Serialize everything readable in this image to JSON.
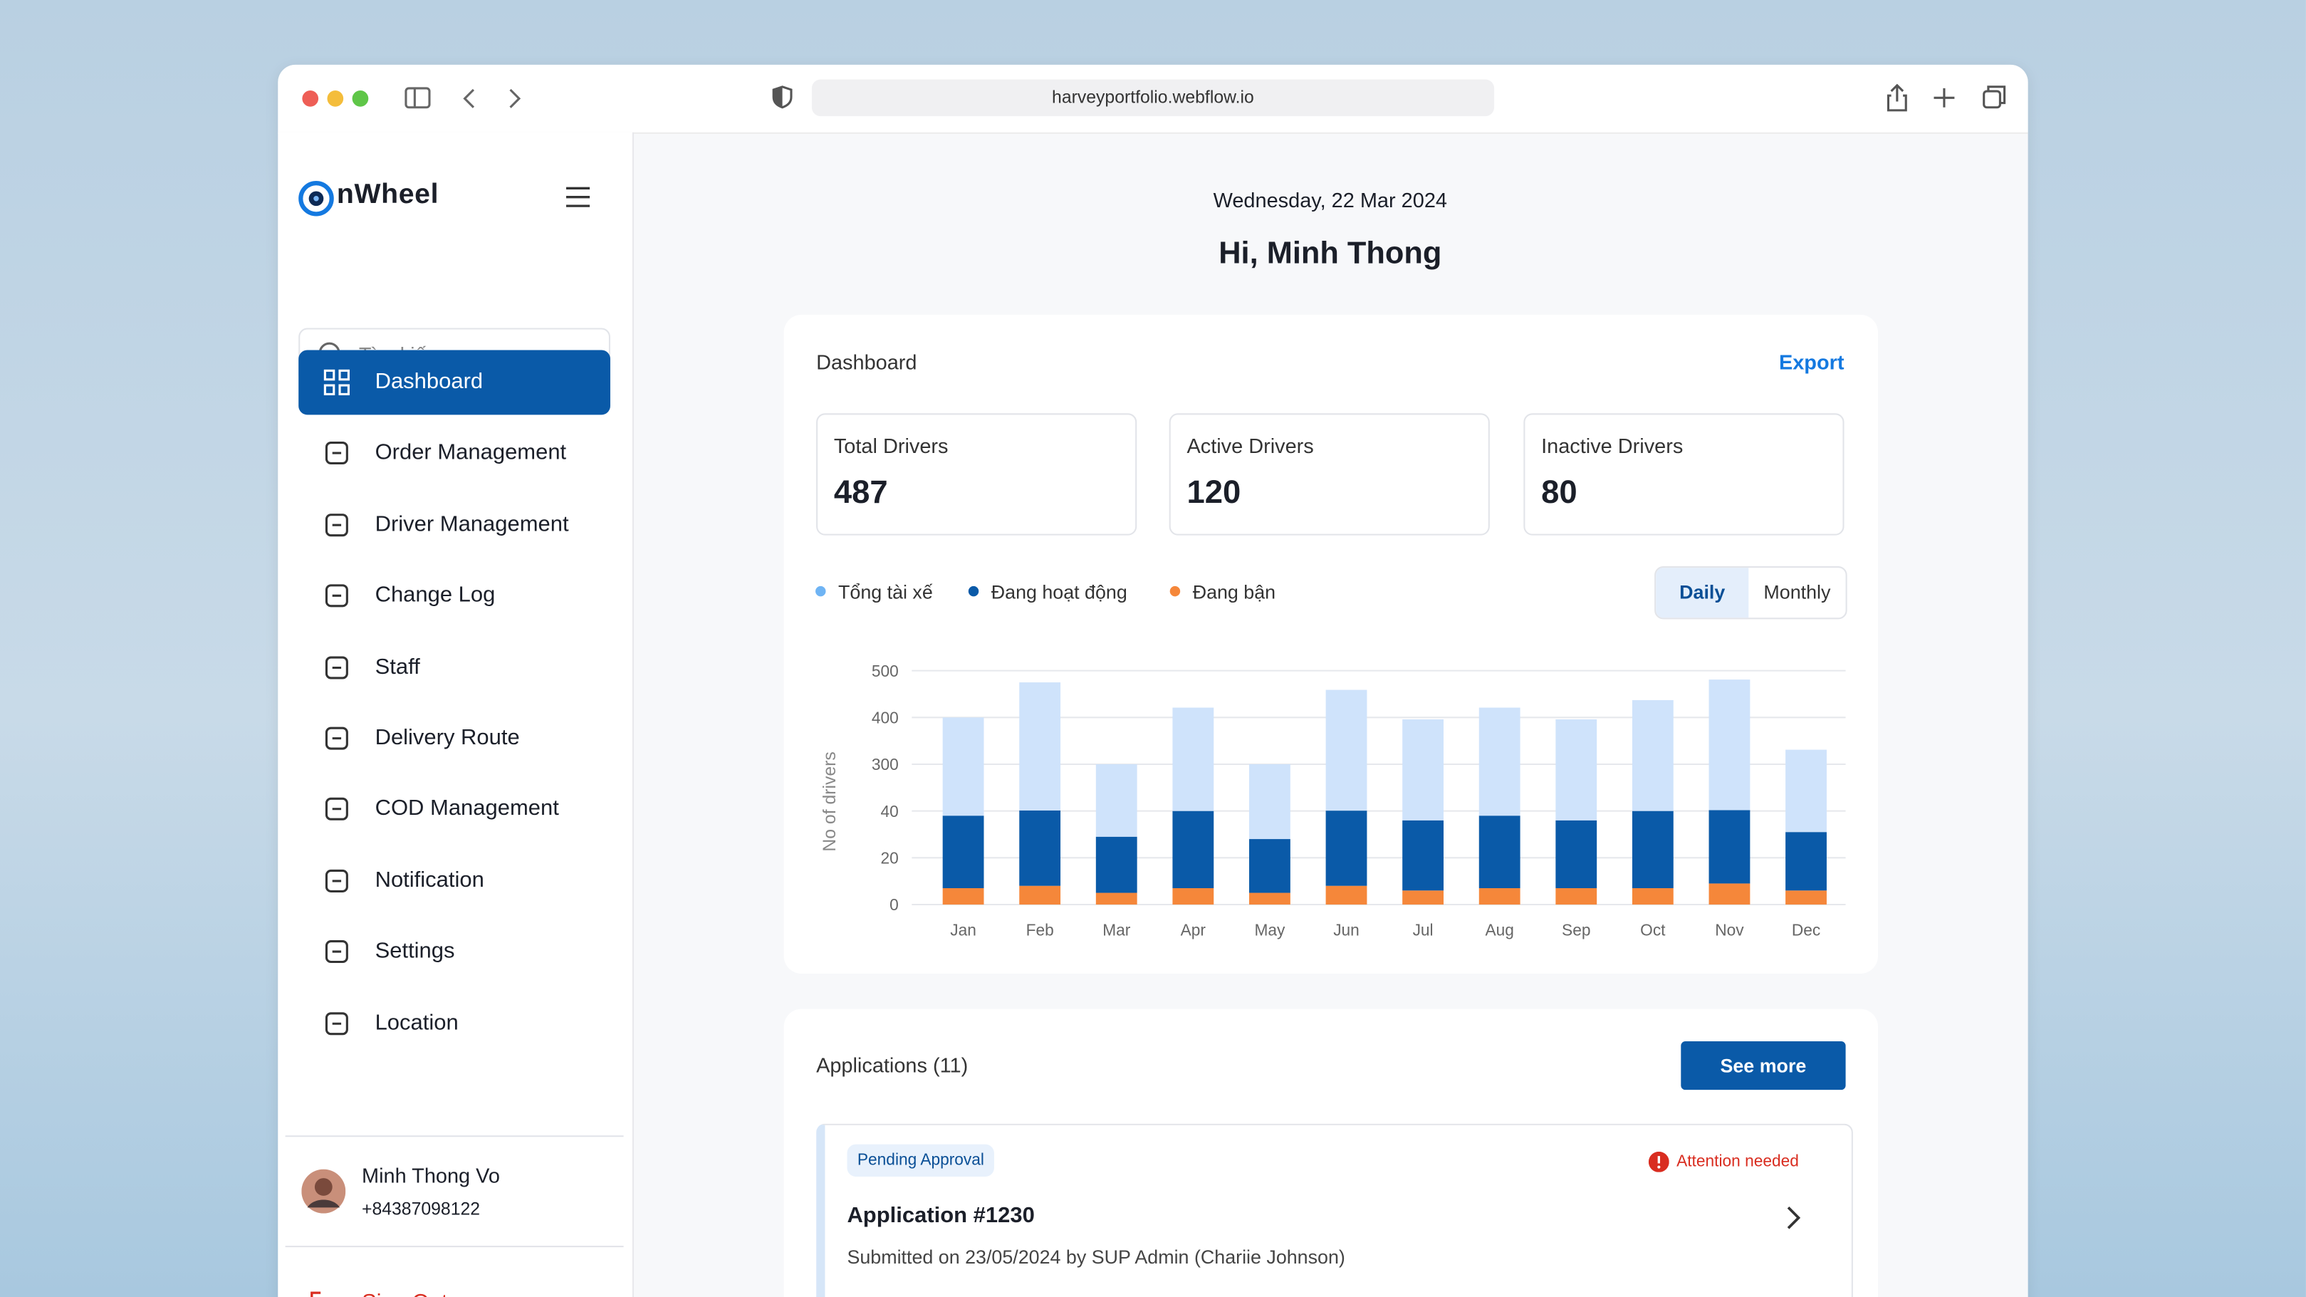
{
  "browser": {
    "url": "harveyportfolio.webflow.io"
  },
  "sidebar": {
    "brand": "nWheel",
    "search_placeholder": "Tìm kiếm",
    "menu": [
      "Dashboard",
      "Order Management",
      "Driver Management",
      "Change Log",
      "Staff",
      "Delivery Route",
      "COD Management",
      "Notification",
      "Settings",
      "Location"
    ],
    "user": {
      "name": "Minh Thong Vo",
      "phone": "+84387098122"
    },
    "sign_out": "Sign Out"
  },
  "header": {
    "date": "Wednesday, 22 Mar 2024",
    "greeting": "Hi, Minh Thong"
  },
  "dashboard": {
    "title": "Dashboard",
    "export": "Export",
    "stats": [
      {
        "label": "Total Drivers",
        "value": 487
      },
      {
        "label": "Active Drivers",
        "value": 120
      },
      {
        "label": "Inactive Drivers",
        "value": 80
      }
    ],
    "toggle": [
      "Daily",
      "Monthly"
    ]
  },
  "chart_data": {
    "type": "stacked-bar",
    "y_label": "No of drivers",
    "categories": [
      "Jan",
      "Feb",
      "Mar",
      "Apr",
      "May",
      "Jun",
      "Jul",
      "Aug",
      "Sep",
      "Oct",
      "Nov",
      "Dec"
    ],
    "series": [
      {
        "name": "Tổng tài xế",
        "color": "#cfe3fb",
        "values": [
          362,
          432,
          271,
          381,
          272,
          417,
          360,
          383,
          360,
          397,
          436,
          300
        ]
      },
      {
        "name": "Đang hoạt động",
        "color": "#0a5aa8",
        "values": [
          31,
          35,
          24,
          33,
          23,
          34,
          30,
          31,
          29,
          33,
          36,
          25
        ]
      },
      {
        "name": "Đang bận",
        "color": "#f5873a",
        "values": [
          7,
          8,
          5,
          7,
          5,
          8,
          6,
          7,
          7,
          7,
          9,
          6
        ]
      }
    ],
    "ylim": [
      0,
      500
    ],
    "yticks": [
      0,
      20,
      40,
      300,
      400,
      500
    ],
    "grid": true
  },
  "applications": {
    "title": "Applications (11)",
    "see_more": "See more",
    "items": [
      {
        "status": "Pending Approval",
        "alert": "Attention needed",
        "title": "Application #1230",
        "submitted": "Submitted on 23/05/2024 by SUP Admin (Chariie Johnson)"
      }
    ]
  }
}
